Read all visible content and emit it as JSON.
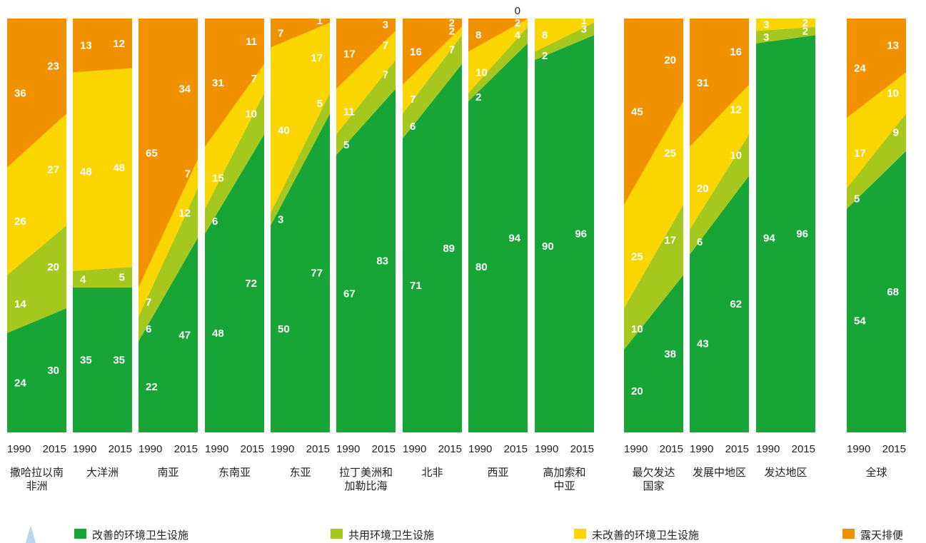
{
  "chart_data": {
    "type": "area",
    "title": "",
    "xlabel": "",
    "ylabel": "",
    "ylim": [
      0,
      100
    ],
    "x": [
      "1990",
      "2015"
    ],
    "series": [
      {
        "name": "改善的环境卫生设施",
        "color": "#17a537"
      },
      {
        "name": "共用环境卫生设施",
        "color": "#a6c81e"
      },
      {
        "name": "未改善的环境卫生设施",
        "color": "#fbd500"
      },
      {
        "name": "露天排便",
        "color": "#f29100"
      }
    ],
    "panels": [
      {
        "region": [
          "撒哈拉以南",
          "非洲"
        ],
        "x_ticks": [
          "1990",
          "2015"
        ],
        "values": {
          "1990": [
            24,
            14,
            26,
            36
          ],
          "2015": [
            30,
            20,
            27,
            23
          ]
        },
        "labels": {
          "1990": [
            "24",
            "14",
            "26",
            "36"
          ],
          "2015": [
            "30",
            "20",
            "27",
            "23"
          ]
        }
      },
      {
        "region": [
          "大洋洲"
        ],
        "x_ticks": [
          "1990",
          "2015"
        ],
        "values": {
          "1990": [
            35,
            4,
            48,
            13
          ],
          "2015": [
            35,
            5,
            48,
            12
          ]
        },
        "labels": {
          "1990": [
            "35",
            "4",
            "48",
            "13"
          ],
          "2015": [
            "35",
            "5",
            "48",
            "12"
          ]
        }
      },
      {
        "region": [
          "南亚"
        ],
        "x_ticks": [
          "1990",
          "2015"
        ],
        "values": {
          "1990": [
            22,
            6,
            7,
            65
          ],
          "2015": [
            47,
            12,
            7,
            34
          ]
        },
        "labels": {
          "1990": [
            "22",
            "6",
            "7",
            "65"
          ],
          "2015": [
            "47",
            "12",
            "7",
            "34"
          ]
        }
      },
      {
        "region": [
          "东南亚"
        ],
        "x_ticks": [
          "1990",
          "2015"
        ],
        "values": {
          "1990": [
            48,
            6,
            15,
            31
          ],
          "2015": [
            72,
            10,
            7,
            11
          ]
        },
        "labels": {
          "1990": [
            "48",
            "6",
            "15",
            "31"
          ],
          "2015": [
            "72",
            "10",
            "7",
            "11"
          ]
        }
      },
      {
        "region": [
          "东亚"
        ],
        "x_ticks": [
          "1990",
          "2015"
        ],
        "values": {
          "1990": [
            50,
            3,
            40,
            7
          ],
          "2015": [
            77,
            5,
            17,
            1
          ]
        },
        "labels": {
          "1990": [
            "50",
            "3",
            "40",
            "7"
          ],
          "2015": [
            "77",
            "5",
            "17",
            "1"
          ]
        }
      },
      {
        "region": [
          "拉丁美洲和",
          "加勒比海"
        ],
        "x_ticks": [
          "1990",
          "2015"
        ],
        "values": {
          "1990": [
            67,
            5,
            11,
            17
          ],
          "2015": [
            83,
            7,
            7,
            3
          ]
        },
        "labels": {
          "1990": [
            "67",
            "5",
            "11",
            "17"
          ],
          "2015": [
            "83",
            "7",
            "7",
            "3"
          ]
        }
      },
      {
        "region": [
          "北非"
        ],
        "x_ticks": [
          "1990",
          "2015"
        ],
        "values": {
          "1990": [
            71,
            6,
            7,
            16
          ],
          "2015": [
            89,
            7,
            2,
            2
          ]
        },
        "labels": {
          "1990": [
            "71",
            "6",
            "7",
            "16"
          ],
          "2015": [
            "89",
            "7",
            "2",
            "2"
          ]
        }
      },
      {
        "region": [
          "西亚"
        ],
        "x_ticks": [
          "1990",
          "2015"
        ],
        "values": {
          "1990": [
            80,
            2,
            10,
            8
          ],
          "2015": [
            94,
            4,
            2,
            0
          ]
        },
        "labels": {
          "1990": [
            "80",
            "2",
            "10",
            "8"
          ],
          "2015": [
            "94",
            "4",
            "2",
            "0"
          ]
        }
      },
      {
        "region": [
          "高加索和",
          "中亚"
        ],
        "x_ticks": [
          "1990",
          "2015"
        ],
        "values": {
          "1990": [
            90,
            2,
            8,
            0
          ],
          "2015": [
            96,
            3,
            1,
            0
          ]
        },
        "labels": {
          "1990": [
            "90",
            "2",
            "8",
            ""
          ],
          "2015": [
            "96",
            "3",
            "1",
            ""
          ]
        }
      },
      {
        "region": [
          "最欠发达",
          "国家"
        ],
        "x_ticks": [
          "1990",
          "2015"
        ],
        "values": {
          "1990": [
            20,
            10,
            25,
            45
          ],
          "2015": [
            38,
            17,
            25,
            20
          ]
        },
        "labels": {
          "1990": [
            "20",
            "10",
            "25",
            "45"
          ],
          "2015": [
            "38",
            "17",
            "25",
            "20"
          ]
        }
      },
      {
        "region": [
          "发展中地区"
        ],
        "x_ticks": [
          "1990",
          "2015"
        ],
        "values": {
          "1990": [
            43,
            6,
            20,
            31
          ],
          "2015": [
            62,
            10,
            12,
            16
          ]
        },
        "labels": {
          "1990": [
            "43",
            "6",
            "20",
            "31"
          ],
          "2015": [
            "62",
            "10",
            "12",
            "16"
          ]
        }
      },
      {
        "region": [
          "发达地区"
        ],
        "x_ticks": [
          "1990",
          "2015"
        ],
        "values": {
          "1990": [
            94,
            3,
            3,
            0
          ],
          "2015": [
            96,
            2,
            2,
            0
          ]
        },
        "labels": {
          "1990": [
            "94",
            "3",
            "3",
            ""
          ],
          "2015": [
            "96",
            "2",
            "2",
            ""
          ]
        }
      },
      {
        "region": [
          "全球"
        ],
        "x_ticks": [
          "1990",
          "2015"
        ],
        "values": {
          "1990": [
            54,
            5,
            17,
            24
          ],
          "2015": [
            68,
            9,
            10,
            13
          ]
        },
        "labels": {
          "1990": [
            "54",
            "5",
            "17",
            "24"
          ],
          "2015": [
            "68",
            "9",
            "10",
            "13"
          ]
        }
      }
    ]
  }
}
